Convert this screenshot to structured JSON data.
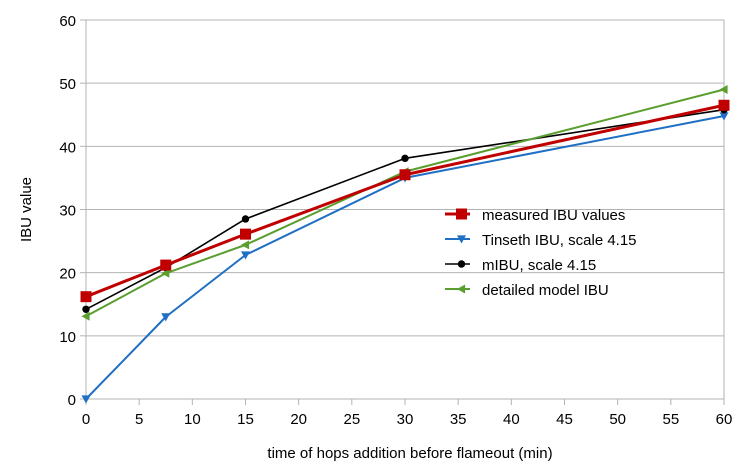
{
  "chart_data": {
    "type": "line",
    "title": "",
    "xlabel": "time of hops addition before flameout (min)",
    "ylabel": "IBU value",
    "xlim": [
      0,
      60
    ],
    "ylim": [
      0,
      60
    ],
    "xticks": [
      0,
      5,
      10,
      15,
      20,
      25,
      30,
      35,
      40,
      45,
      50,
      55,
      60
    ],
    "yticks": [
      0,
      10,
      20,
      30,
      40,
      50,
      60
    ],
    "grid": "horizontal",
    "legend_position": "right-center",
    "series": [
      {
        "name": "measured IBU values",
        "color": "#c00000",
        "marker": "square",
        "x": [
          0,
          7.5,
          15,
          30,
          60
        ],
        "y": [
          16.2,
          21.2,
          26.1,
          35.5,
          46.5
        ]
      },
      {
        "name": "Tinseth IBU, scale 4.15",
        "color": "#1f6fc5",
        "marker": "triangle-down",
        "x": [
          0,
          7.5,
          15,
          30,
          60
        ],
        "y": [
          0,
          13.0,
          22.8,
          35.0,
          44.8
        ]
      },
      {
        "name": "mIBU, scale 4.15",
        "color": "#000000",
        "marker": "circle",
        "x": [
          0,
          7.5,
          15,
          30,
          60
        ],
        "y": [
          14.2,
          20.8,
          28.5,
          38.1,
          45.8
        ]
      },
      {
        "name": "detailed model IBU",
        "color": "#5a9e2e",
        "marker": "triangle-left",
        "x": [
          0,
          7.5,
          15,
          30,
          60
        ],
        "y": [
          13.1,
          19.9,
          24.4,
          36.0,
          49.0
        ]
      }
    ]
  }
}
